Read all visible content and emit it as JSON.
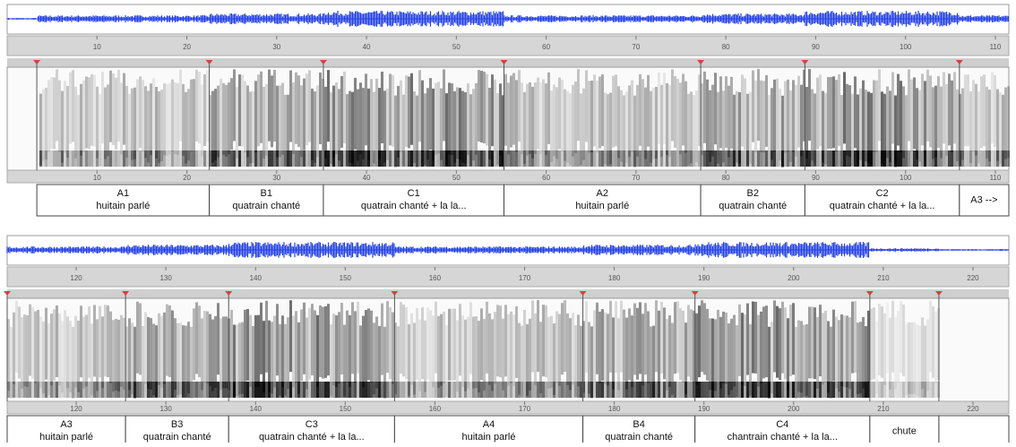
{
  "panels": [
    {
      "xlim": [
        0,
        111.5
      ],
      "ticks": [
        10,
        20,
        30,
        40,
        50,
        60,
        70,
        80,
        90,
        100,
        110
      ],
      "segments": [
        {
          "start": 3.3,
          "lines": [
            "A1",
            "huitain parlé"
          ]
        },
        {
          "start": 22.5,
          "lines": [
            "B1",
            "quatrain chanté"
          ]
        },
        {
          "start": 35.2,
          "lines": [
            "C1",
            "quatrain chanté + la la..."
          ]
        },
        {
          "start": 55.3,
          "lines": [
            "A2",
            "huitain parlé"
          ]
        },
        {
          "start": 77.2,
          "lines": [
            "B2",
            "quatrain chanté"
          ]
        },
        {
          "start": 88.8,
          "lines": [
            "C2",
            "quatrain chanté + la la..."
          ]
        },
        {
          "start": 106,
          "lines": [
            "A3 -->"
          ]
        }
      ]
    },
    {
      "xlim": [
        112.3,
        224
      ],
      "ticks": [
        120,
        130,
        140,
        150,
        160,
        170,
        180,
        190,
        200,
        210,
        220
      ],
      "segments": [
        {
          "start": 112.3,
          "lines": [
            "A3",
            "huitain parlé"
          ]
        },
        {
          "start": 125.5,
          "lines": [
            "B3",
            "quatrain chanté"
          ]
        },
        {
          "start": 137,
          "lines": [
            "C3",
            "quatrain chanté + la la..."
          ]
        },
        {
          "start": 155.5,
          "lines": [
            "A4",
            "huitain parlé"
          ]
        },
        {
          "start": 176.5,
          "lines": [
            "B4",
            "quatrain chanté"
          ]
        },
        {
          "start": 189,
          "lines": [
            "C4",
            "chantrain chanté + la la..."
          ]
        },
        {
          "start": 208.5,
          "lines": [
            "chute"
          ]
        },
        {
          "start": 216.2
        }
      ]
    }
  ]
}
